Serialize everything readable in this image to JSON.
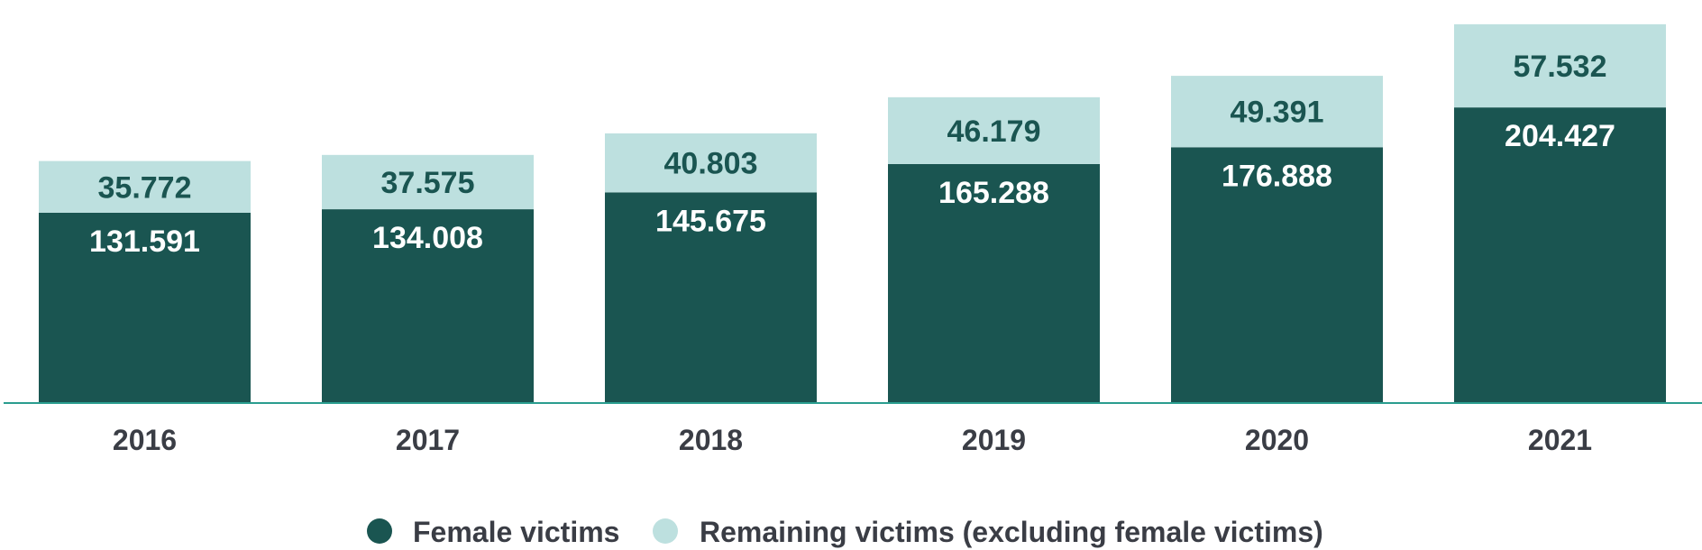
{
  "colors": {
    "female": "#1a5551",
    "remaining": "#bde0df",
    "axis": "#2a9d8f",
    "female_label": "#ffffff",
    "remaining_label": "#1a5551"
  },
  "chart_data": {
    "type": "bar",
    "stacked": true,
    "categories": [
      "2016",
      "2017",
      "2018",
      "2019",
      "2020",
      "2021"
    ],
    "series": [
      {
        "name": "Female victims",
        "values": [
          131591,
          134008,
          145675,
          165288,
          176888,
          204427
        ],
        "labels": [
          "131.591",
          "134.008",
          "145.675",
          "165.288",
          "176.888",
          "204.427"
        ]
      },
      {
        "name": "Remaining victims (excluding female victims)",
        "values": [
          35772,
          37575,
          40803,
          46179,
          49391,
          57532
        ],
        "labels": [
          "35.772",
          "37.575",
          "40.803",
          "46.179",
          "49.391",
          "57.532"
        ]
      }
    ],
    "ylim": [
      0,
      265000
    ],
    "grid": false,
    "legend": "bottom-center"
  }
}
